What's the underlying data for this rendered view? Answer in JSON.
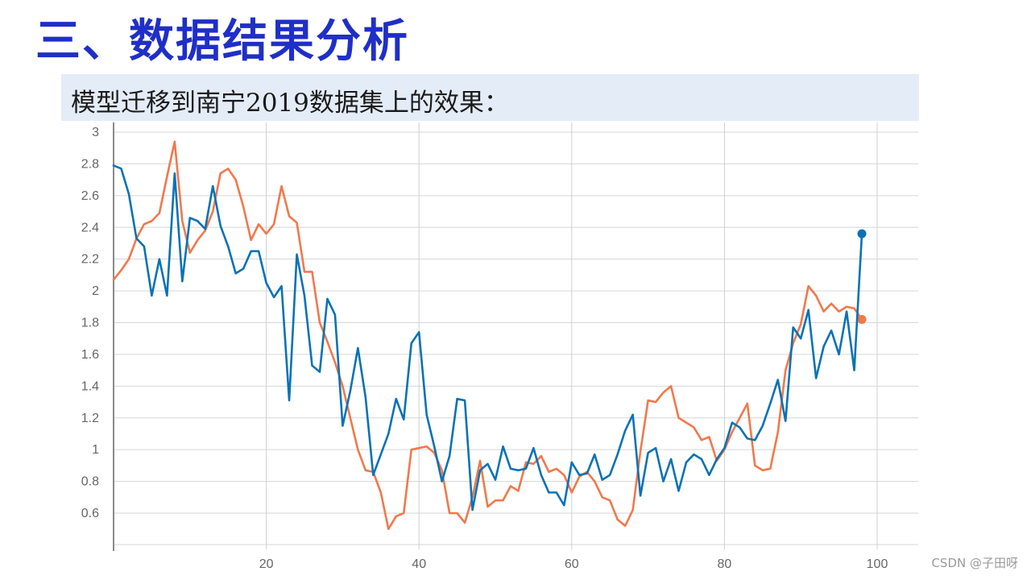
{
  "slide": {
    "title": "三、数据结果分析",
    "subtitle": "模型迁移到南宁2019数据集上的效果："
  },
  "watermark": "CSDN @子田呀",
  "colors": {
    "title": "#1f2fc7",
    "subtitle_bg": "#e4ecf8"
  },
  "chart_data": {
    "type": "line",
    "title": "",
    "xlabel": "",
    "ylabel": "",
    "xlim": [
      0,
      105
    ],
    "ylim": [
      0.4,
      3.0
    ],
    "grid": true,
    "x_ticks": [
      20,
      40,
      60,
      80,
      100
    ],
    "y_ticks": [
      0.6,
      0.8,
      1,
      1.2,
      1.4,
      1.6,
      1.8,
      2,
      2.2,
      2.4,
      2.6,
      2.8,
      3
    ],
    "x_start": 0,
    "series": [
      {
        "color": "#f2784b",
        "end_marker": true,
        "values": [
          2.07,
          2.13,
          2.2,
          2.33,
          2.42,
          2.44,
          2.49,
          2.72,
          2.94,
          2.44,
          2.24,
          2.32,
          2.38,
          2.5,
          2.74,
          2.77,
          2.7,
          2.53,
          2.32,
          2.42,
          2.36,
          2.42,
          2.66,
          2.47,
          2.43,
          2.12,
          2.12,
          1.8,
          1.68,
          1.55,
          1.4,
          1.2,
          1.0,
          0.87,
          0.86,
          0.73,
          0.5,
          0.58,
          0.6,
          1.0,
          1.01,
          1.02,
          0.98,
          0.87,
          0.6,
          0.6,
          0.54,
          0.7,
          0.93,
          0.64,
          0.68,
          0.68,
          0.77,
          0.74,
          0.92,
          0.91,
          0.96,
          0.86,
          0.88,
          0.84,
          0.73,
          0.83,
          0.86,
          0.8,
          0.7,
          0.68,
          0.56,
          0.52,
          0.62,
          0.99,
          1.31,
          1.3,
          1.36,
          1.4,
          1.2,
          1.17,
          1.14,
          1.06,
          1.08,
          0.93,
          1.0,
          1.11,
          1.2,
          1.29,
          0.9,
          0.87,
          0.88,
          1.11,
          1.5,
          1.67,
          1.79,
          2.03,
          1.97,
          1.87,
          1.92,
          1.87,
          1.9,
          1.89,
          1.82
        ]
      },
      {
        "color": "#0a72b5",
        "end_marker": true,
        "values": [
          2.79,
          2.77,
          2.61,
          2.33,
          2.28,
          1.97,
          2.2,
          1.97,
          2.74,
          2.06,
          2.46,
          2.44,
          2.39,
          2.66,
          2.41,
          2.28,
          2.11,
          2.14,
          2.25,
          2.25,
          2.05,
          1.96,
          2.03,
          1.31,
          2.23,
          1.97,
          1.53,
          1.49,
          1.95,
          1.85,
          1.15,
          1.37,
          1.64,
          1.33,
          0.84,
          0.97,
          1.1,
          1.32,
          1.19,
          1.67,
          1.74,
          1.22,
          1.02,
          0.8,
          0.96,
          1.32,
          1.31,
          0.62,
          0.87,
          0.91,
          0.81,
          1.02,
          0.88,
          0.87,
          0.88,
          1.01,
          0.84,
          0.73,
          0.73,
          0.65,
          0.92,
          0.84,
          0.85,
          0.97,
          0.81,
          0.84,
          0.97,
          1.12,
          1.22,
          0.71,
          0.98,
          1.01,
          0.8,
          0.94,
          0.74,
          0.92,
          0.97,
          0.94,
          0.84,
          0.94,
          1.01,
          1.17,
          1.14,
          1.07,
          1.06,
          1.15,
          1.29,
          1.44,
          1.18,
          1.77,
          1.7,
          1.88,
          1.45,
          1.65,
          1.75,
          1.6,
          1.87,
          1.5,
          2.36
        ]
      }
    ]
  }
}
